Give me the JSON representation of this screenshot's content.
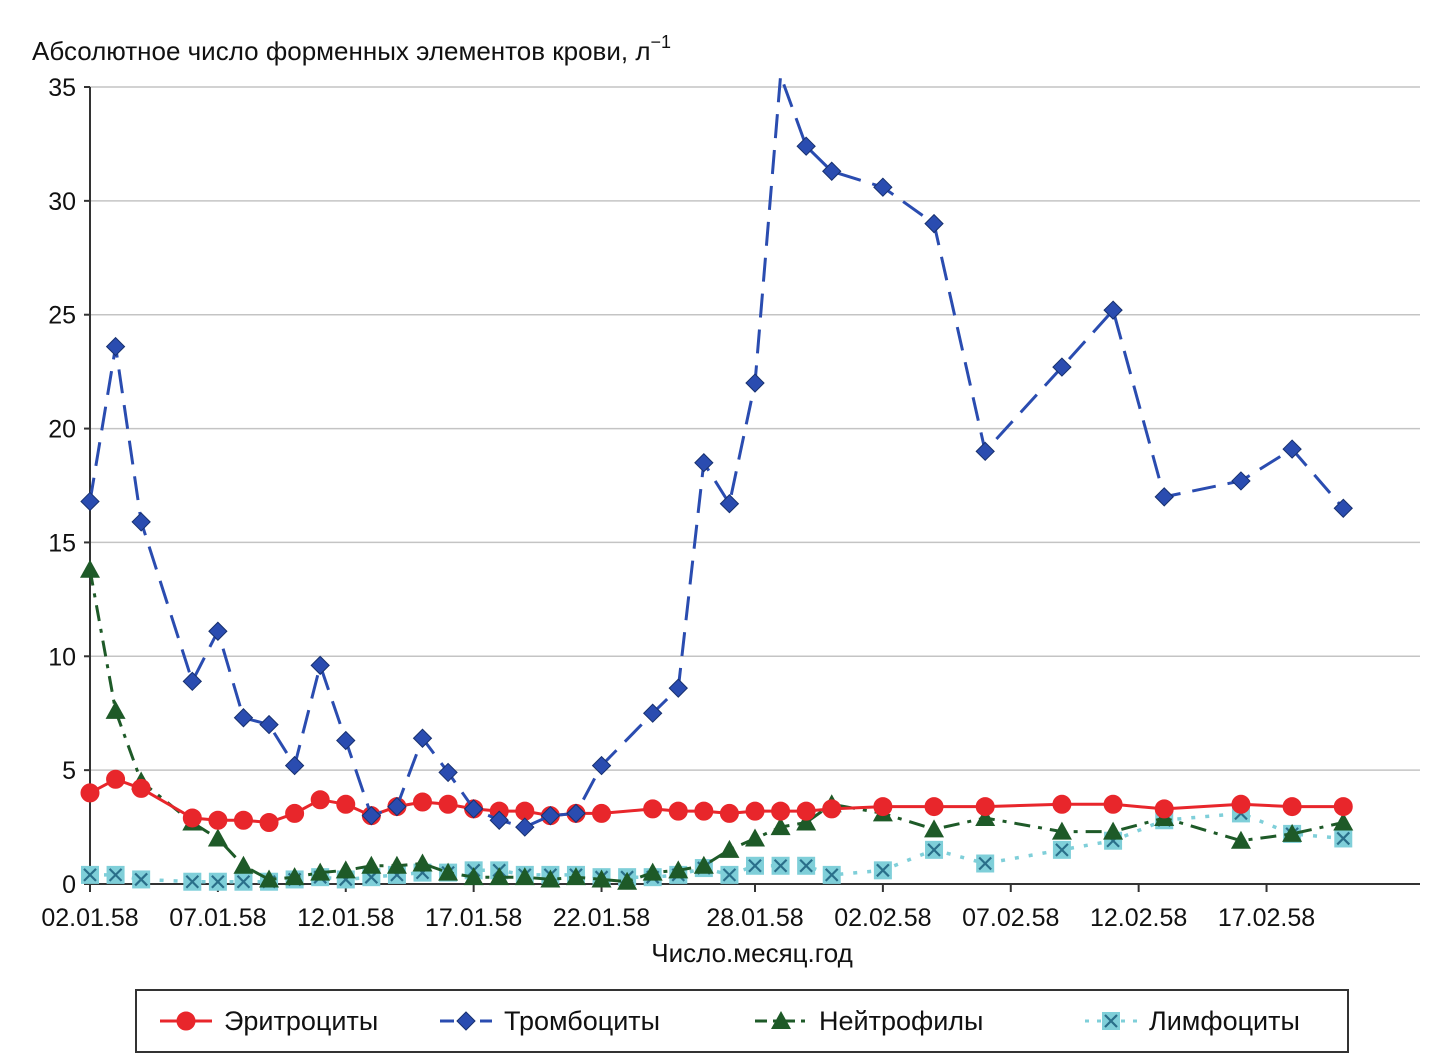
{
  "chart_data": {
    "type": "line",
    "ylabel": "Абсолютное число форменных элементов крови, л",
    "ylabel_sup": "−1",
    "xlabel": "Число.месяц.год",
    "ylim": [
      0,
      35
    ],
    "yticks": [
      0,
      5,
      10,
      15,
      20,
      25,
      30,
      35
    ],
    "xlim": [
      1,
      53
    ],
    "xticks": [
      {
        "x": 1,
        "label": "02.01.58"
      },
      {
        "x": 6,
        "label": "07.01.58"
      },
      {
        "x": 11,
        "label": "12.01.58"
      },
      {
        "x": 16,
        "label": "17.01.58"
      },
      {
        "x": 21,
        "label": "22.01.58"
      },
      {
        "x": 27,
        "label": "28.01.58"
      },
      {
        "x": 32,
        "label": "02.02.58"
      },
      {
        "x": 37,
        "label": "07.02.58"
      },
      {
        "x": 42,
        "label": "12.02.58"
      },
      {
        "x": 47,
        "label": "17.02.58"
      }
    ],
    "grid": true,
    "legend_position": "bottom",
    "series": [
      {
        "name": "Эритроциты",
        "color": "#e8262b",
        "marker": "circle",
        "dash": "solid",
        "points": [
          [
            1,
            4.0
          ],
          [
            2,
            4.6
          ],
          [
            3,
            4.2
          ],
          [
            5,
            2.9
          ],
          [
            6,
            2.8
          ],
          [
            7,
            2.8
          ],
          [
            8,
            2.7
          ],
          [
            9,
            3.1
          ],
          [
            10,
            3.7
          ],
          [
            11,
            3.5
          ],
          [
            12,
            3.0
          ],
          [
            13,
            3.4
          ],
          [
            14,
            3.6
          ],
          [
            15,
            3.5
          ],
          [
            16,
            3.3
          ],
          [
            17,
            3.2
          ],
          [
            18,
            3.2
          ],
          [
            19,
            3.0
          ],
          [
            20,
            3.1
          ],
          [
            21,
            3.1
          ],
          [
            23,
            3.3
          ],
          [
            24,
            3.2
          ],
          [
            25,
            3.2
          ],
          [
            26,
            3.1
          ],
          [
            27,
            3.2
          ],
          [
            28,
            3.2
          ],
          [
            29,
            3.2
          ],
          [
            30,
            3.3
          ],
          [
            32,
            3.4
          ],
          [
            34,
            3.4
          ],
          [
            36,
            3.4
          ],
          [
            39,
            3.5
          ],
          [
            41,
            3.5
          ],
          [
            43,
            3.3
          ],
          [
            46,
            3.5
          ],
          [
            48,
            3.4
          ],
          [
            50,
            3.4
          ]
        ]
      },
      {
        "name": "Тромбоциты",
        "color": "#2a4cb0",
        "marker": "diamond",
        "dash": "long-dash",
        "points": [
          [
            1,
            16.8
          ],
          [
            2,
            23.6
          ],
          [
            3,
            15.9
          ],
          [
            5,
            8.9
          ],
          [
            6,
            11.1
          ],
          [
            7,
            7.3
          ],
          [
            8,
            7.0
          ],
          [
            9,
            5.2
          ],
          [
            10,
            9.6
          ],
          [
            11,
            6.3
          ],
          [
            12,
            3.0
          ],
          [
            13,
            3.4
          ],
          [
            14,
            6.4
          ],
          [
            15,
            4.9
          ],
          [
            16,
            3.3
          ],
          [
            17,
            2.8
          ],
          [
            18,
            2.5
          ],
          [
            19,
            3.0
          ],
          [
            20,
            3.1
          ],
          [
            21,
            5.2
          ],
          [
            23,
            7.5
          ],
          [
            24,
            8.6
          ],
          [
            25,
            18.5
          ],
          [
            26,
            16.7
          ],
          [
            27,
            22.0
          ],
          [
            28,
            35.5
          ],
          [
            29,
            32.4
          ],
          [
            30,
            31.3
          ],
          [
            32,
            30.6
          ],
          [
            34,
            29.0
          ],
          [
            36,
            19.0
          ],
          [
            39,
            22.7
          ],
          [
            41,
            25.2
          ],
          [
            43,
            17.0
          ],
          [
            46,
            17.7
          ],
          [
            48,
            19.1
          ],
          [
            50,
            16.5
          ]
        ]
      },
      {
        "name": "Нейтрофилы",
        "color": "#1e5a28",
        "marker": "triangle",
        "dash": "dash-dot",
        "points": [
          [
            1,
            13.8
          ],
          [
            2,
            7.6
          ],
          [
            3,
            4.5
          ],
          [
            5,
            2.7
          ],
          [
            6,
            2.0
          ],
          [
            7,
            0.8
          ],
          [
            8,
            0.2
          ],
          [
            9,
            0.3
          ],
          [
            10,
            0.5
          ],
          [
            11,
            0.6
          ],
          [
            12,
            0.8
          ],
          [
            13,
            0.8
          ],
          [
            14,
            0.9
          ],
          [
            15,
            0.5
          ],
          [
            16,
            0.3
          ],
          [
            17,
            0.3
          ],
          [
            18,
            0.3
          ],
          [
            19,
            0.2
          ],
          [
            20,
            0.3
          ],
          [
            21,
            0.2
          ],
          [
            22,
            0.1
          ],
          [
            23,
            0.5
          ],
          [
            24,
            0.6
          ],
          [
            25,
            0.8
          ],
          [
            26,
            1.5
          ],
          [
            27,
            2.0
          ],
          [
            28,
            2.5
          ],
          [
            29,
            2.7
          ],
          [
            30,
            3.5
          ],
          [
            32,
            3.1
          ],
          [
            34,
            2.4
          ],
          [
            36,
            2.9
          ],
          [
            39,
            2.3
          ],
          [
            41,
            2.3
          ],
          [
            43,
            2.9
          ],
          [
            46,
            1.9
          ],
          [
            48,
            2.2
          ],
          [
            50,
            2.7
          ]
        ]
      },
      {
        "name": "Лимфоциты",
        "color": "#7fcfd9",
        "marker": "x-square",
        "dash": "dotted",
        "points": [
          [
            1,
            0.4
          ],
          [
            2,
            0.4
          ],
          [
            3,
            0.2
          ],
          [
            5,
            0.1
          ],
          [
            6,
            0.1
          ],
          [
            7,
            0.1
          ],
          [
            8,
            0.1
          ],
          [
            9,
            0.2
          ],
          [
            10,
            0.3
          ],
          [
            11,
            0.2
          ],
          [
            12,
            0.3
          ],
          [
            13,
            0.4
          ],
          [
            14,
            0.5
          ],
          [
            15,
            0.5
          ],
          [
            16,
            0.6
          ],
          [
            17,
            0.6
          ],
          [
            18,
            0.4
          ],
          [
            19,
            0.4
          ],
          [
            20,
            0.4
          ],
          [
            21,
            0.3
          ],
          [
            22,
            0.3
          ],
          [
            23,
            0.3
          ],
          [
            24,
            0.4
          ],
          [
            25,
            0.7
          ],
          [
            26,
            0.4
          ],
          [
            27,
            0.8
          ],
          [
            28,
            0.8
          ],
          [
            29,
            0.8
          ],
          [
            30,
            0.4
          ],
          [
            32,
            0.6
          ],
          [
            34,
            1.5
          ],
          [
            36,
            0.9
          ],
          [
            39,
            1.5
          ],
          [
            41,
            1.9
          ],
          [
            43,
            2.8
          ],
          [
            46,
            3.1
          ],
          [
            48,
            2.2
          ],
          [
            50,
            2.0
          ]
        ]
      }
    ]
  }
}
